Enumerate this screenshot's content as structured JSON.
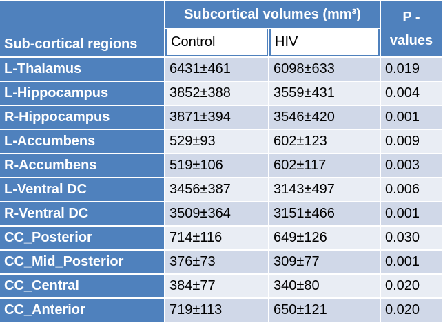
{
  "table": {
    "header": {
      "region": "Sub-cortical regions",
      "volumes": "Subcortical volumes (mm³)",
      "control": "Control",
      "hiv": "HIV",
      "p": "P - values"
    },
    "rows": [
      [
        "L-Thalamus",
        "6431±461",
        "6098±633",
        "0.019"
      ],
      [
        "L-Hippocampus",
        "3852±388",
        "3559±431",
        "0.004"
      ],
      [
        "R-Hippocampus",
        "3871±394",
        "3546±420",
        "0.001"
      ],
      [
        "L-Accumbens",
        "529±93",
        "602±123",
        "0.009"
      ],
      [
        "R-Accumbens",
        "519±106",
        "602±117",
        "0.003"
      ],
      [
        "L-Ventral DC",
        "3456±387",
        "3143±497",
        "0.006"
      ],
      [
        "R-Ventral DC",
        "3509±364",
        "3151±466",
        "0.001"
      ],
      [
        "CC_Posterior",
        "714±116",
        "649±126",
        "0.030"
      ],
      [
        "CC_Mid_Posterior",
        "376±73",
        "309±77",
        "0.001"
      ],
      [
        "CC_Central",
        "384±77",
        "340±80",
        "0.020"
      ],
      [
        "CC_Anterior",
        "719±113",
        "650±121",
        "0.020"
      ]
    ]
  }
}
